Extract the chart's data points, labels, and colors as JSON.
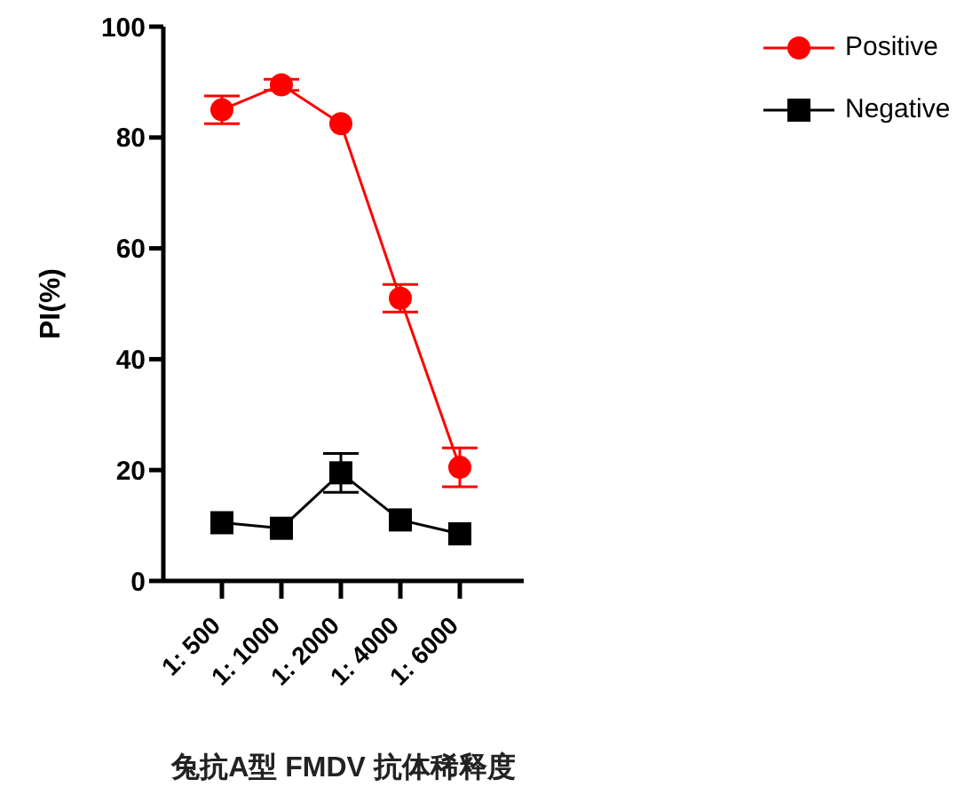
{
  "chart_data": {
    "type": "line",
    "xlabel": "兔抗A型 FMDV 抗体稀释度",
    "ylabel": "PI(%)",
    "categories": [
      "1: 500",
      "1: 1000",
      "1: 2000",
      "1: 4000",
      "1: 6000"
    ],
    "series": [
      {
        "name": "Positive",
        "color": "#ff0000",
        "marker": "circle",
        "values": [
          85,
          89.5,
          82.5,
          51,
          20.5
        ],
        "errors": [
          2.5,
          1,
          null,
          2.5,
          3.5
        ]
      },
      {
        "name": "Negative",
        "color": "#000000",
        "marker": "square",
        "values": [
          10.5,
          9.5,
          19.5,
          11,
          8.5
        ],
        "errors": [
          null,
          null,
          3.5,
          null,
          null
        ]
      }
    ],
    "ylim": [
      0,
      100
    ],
    "yticks": [
      0,
      20,
      40,
      60,
      80,
      100
    ],
    "grid": false,
    "legend": "top right"
  }
}
